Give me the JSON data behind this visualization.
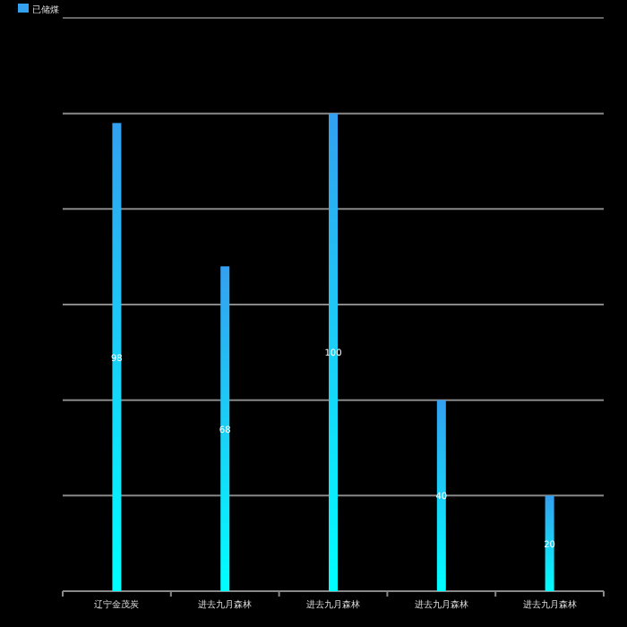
{
  "chart_data": {
    "type": "bar",
    "categories": [
      "辽宁金茂炭",
      "进去九月森林",
      "进去九月森林",
      "进去九月森林",
      "进去九月森林"
    ],
    "series": [
      {
        "name": "已储煤",
        "color": "#33a0f0",
        "values": [
          98,
          68,
          100,
          40,
          20
        ]
      }
    ],
    "ylim": [
      0,
      120
    ],
    "yticks": [
      {
        "value": 0,
        "label": null
      },
      {
        "value": 20,
        "label": null
      },
      {
        "value": 40,
        "label": null
      },
      {
        "value": 60,
        "label": null
      },
      {
        "value": 80,
        "label": null
      },
      {
        "value": 100,
        "label": null
      },
      {
        "value": 120,
        "label": null
      }
    ],
    "grid": "y",
    "legend": "top left",
    "data_labels": true
  }
}
